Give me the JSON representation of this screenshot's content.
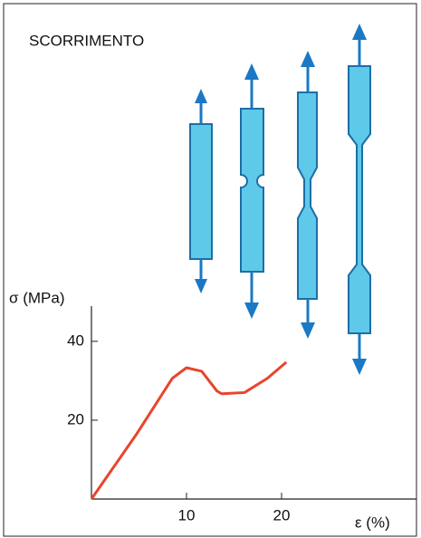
{
  "chart_data": {
    "type": "line",
    "title": "SCORRIMENTO",
    "y_label": "σ (MPa)",
    "x_label": "ε (%)",
    "x": [
      0,
      4.7,
      8.5,
      10,
      11.6,
      13.2,
      13.7,
      16.1,
      18.5,
      20.5
    ],
    "series": [
      {
        "color": "#e8452c",
        "values": [
          0,
          16.3,
          30.6,
          33.3,
          32.4,
          27.4,
          26.7,
          27,
          30.6,
          34.7
        ]
      }
    ],
    "xlim": [
      0,
      34
    ],
    "ylim": [
      0,
      48
    ],
    "xticks": [
      10,
      20
    ],
    "yticks": [
      20,
      40
    ]
  }
}
